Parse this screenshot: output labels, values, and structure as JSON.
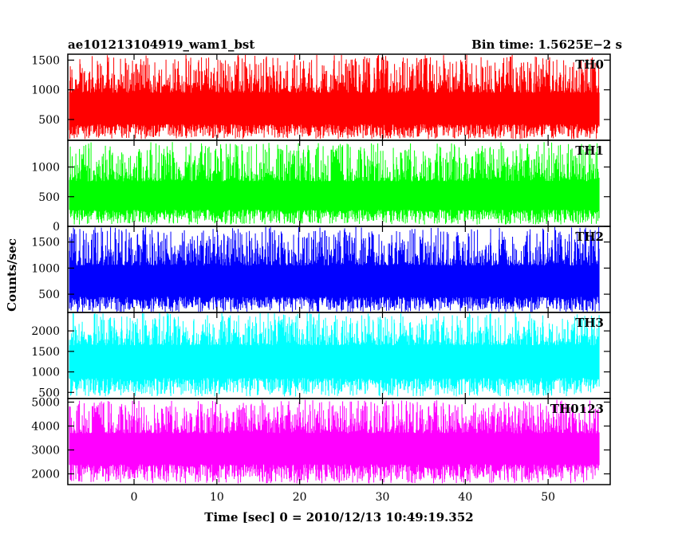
{
  "header": {
    "title_left": "ae101213104919_wam1_bst",
    "title_right": "Bin time: 1.5625E−2 s"
  },
  "chart_data": {
    "type": "line",
    "title": "ae101213104919_wam1_bst",
    "subtitle": "Bin time: 1.5625E−2 s",
    "xlabel": "Time [sec] 0 = 2010/12/13 10:49:19.352",
    "ylabel": "Counts/sec",
    "xlim": [
      -8,
      57.5
    ],
    "x_ticks": [
      0,
      10,
      20,
      30,
      40,
      50
    ],
    "data_x_range": [
      -7.8,
      56.2
    ],
    "bin_time": 0.015625,
    "grid": false,
    "panels": [
      {
        "name": "TH0",
        "color": "#ff0000",
        "ylim": [
          150,
          1600
        ],
        "y_ticks": [
          500,
          1000,
          1500
        ],
        "min": 170,
        "max": 1600,
        "base_low": 420,
        "base_high": 950
      },
      {
        "name": "TH1",
        "color": "#00ff00",
        "ylim": [
          0,
          1450
        ],
        "y_ticks": [
          0,
          500,
          1000
        ],
        "min": 30,
        "max": 1420,
        "base_low": 280,
        "base_high": 760
      },
      {
        "name": "TH2",
        "color": "#0000ff",
        "ylim": [
          150,
          1800
        ],
        "y_ticks": [
          500,
          1000,
          1500
        ],
        "min": 150,
        "max": 1800,
        "base_low": 450,
        "base_high": 1050
      },
      {
        "name": "TH3",
        "color": "#00ffff",
        "ylim": [
          350,
          2450
        ],
        "y_ticks": [
          500,
          1000,
          1500,
          2000
        ],
        "min": 400,
        "max": 2450,
        "base_low": 850,
        "base_high": 1650
      },
      {
        "name": "TH0123",
        "color": "#ff00ff",
        "ylim": [
          1550,
          5150
        ],
        "y_ticks": [
          2000,
          3000,
          4000,
          5000
        ],
        "min": 1600,
        "max": 5100,
        "base_low": 2400,
        "base_high": 3700
      }
    ]
  }
}
